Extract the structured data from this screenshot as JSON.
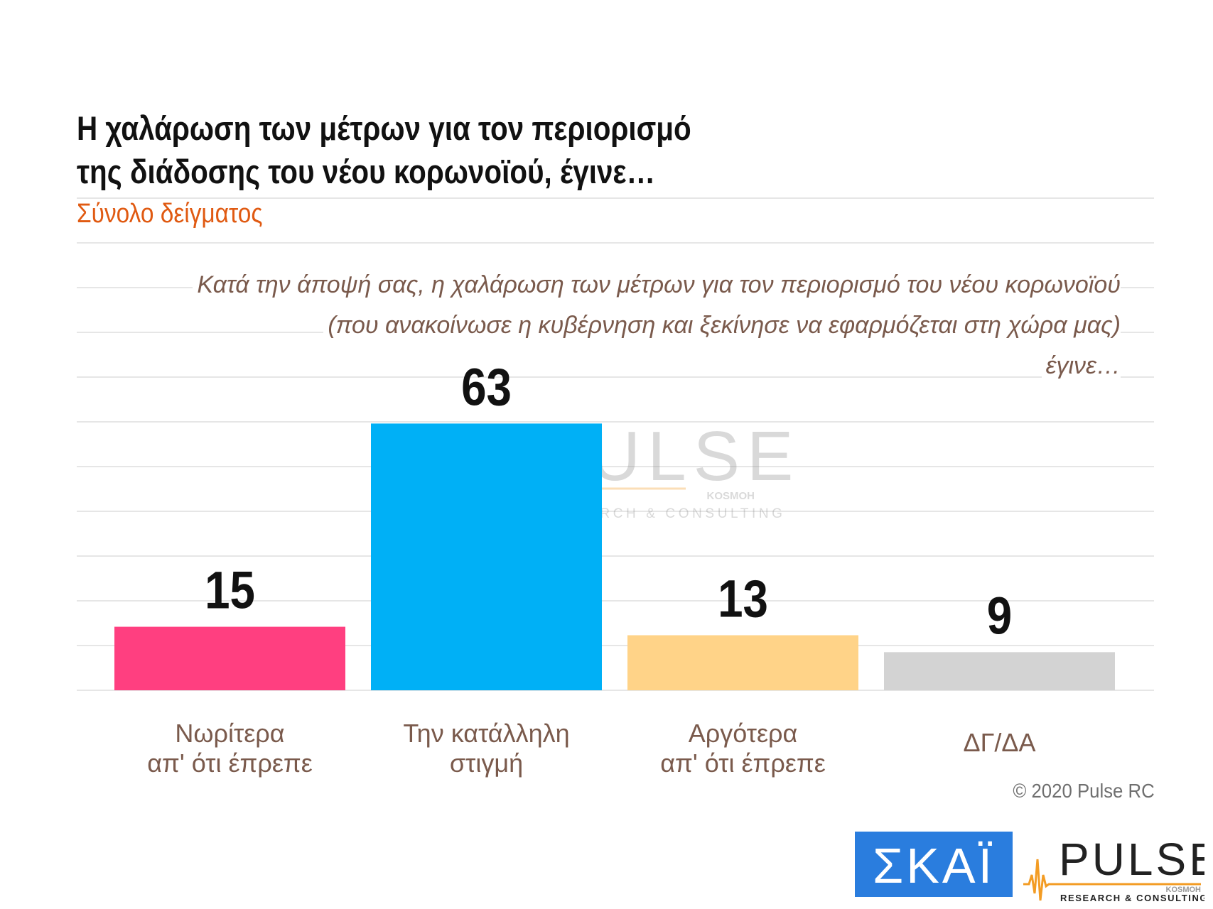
{
  "title_lines": [
    "Η χαλάρωση των μέτρων για τον περιορισμό",
    "της διάδοσης του νέου κορωνοϊού, έγινε…"
  ],
  "subtitle": "Σύνολο δείγματος",
  "question_lines": [
    "Κατά την άποψή σας, η χαλάρωση των μέτρων για τον περιορισμό του νέου κορωνοϊού",
    "(που ανακοίνωσε η κυβέρνηση και ξεκίνησε να εφαρμόζεται στη χώρα μας)",
    "έγινε…"
  ],
  "copyright": "© 2020 Pulse RC",
  "logos": {
    "skai": "ΣΚΑΪ",
    "pulse": "PULSE",
    "pulse_small": "KOSMOH",
    "pulse_tagline": "RESEARCH & CONSULTING"
  },
  "colors": {
    "title": "#111111",
    "subtitle": "#e05a12",
    "labels": "#7a5a4c",
    "grid": "#e6e6e6",
    "skai_blue": "#2a7dde",
    "pulse_orange": "#f39c24"
  },
  "chart_data": {
    "type": "bar",
    "categories": [
      [
        "Νωρίτερα",
        "απ' ότι έπρεπε"
      ],
      [
        "Την κατάλληλη",
        "στιγμή"
      ],
      [
        "Αργότερα",
        "απ' ότι έπρεπε"
      ],
      [
        "ΔΓ/ΔΑ"
      ]
    ],
    "values": [
      15,
      63,
      13,
      9
    ],
    "bar_colors": [
      "#ff3f80",
      "#00b0f6",
      "#ffd388",
      "#d3d3d3"
    ],
    "ylim": [
      0,
      105
    ],
    "grid": true,
    "data_labels": true,
    "legend": false
  }
}
